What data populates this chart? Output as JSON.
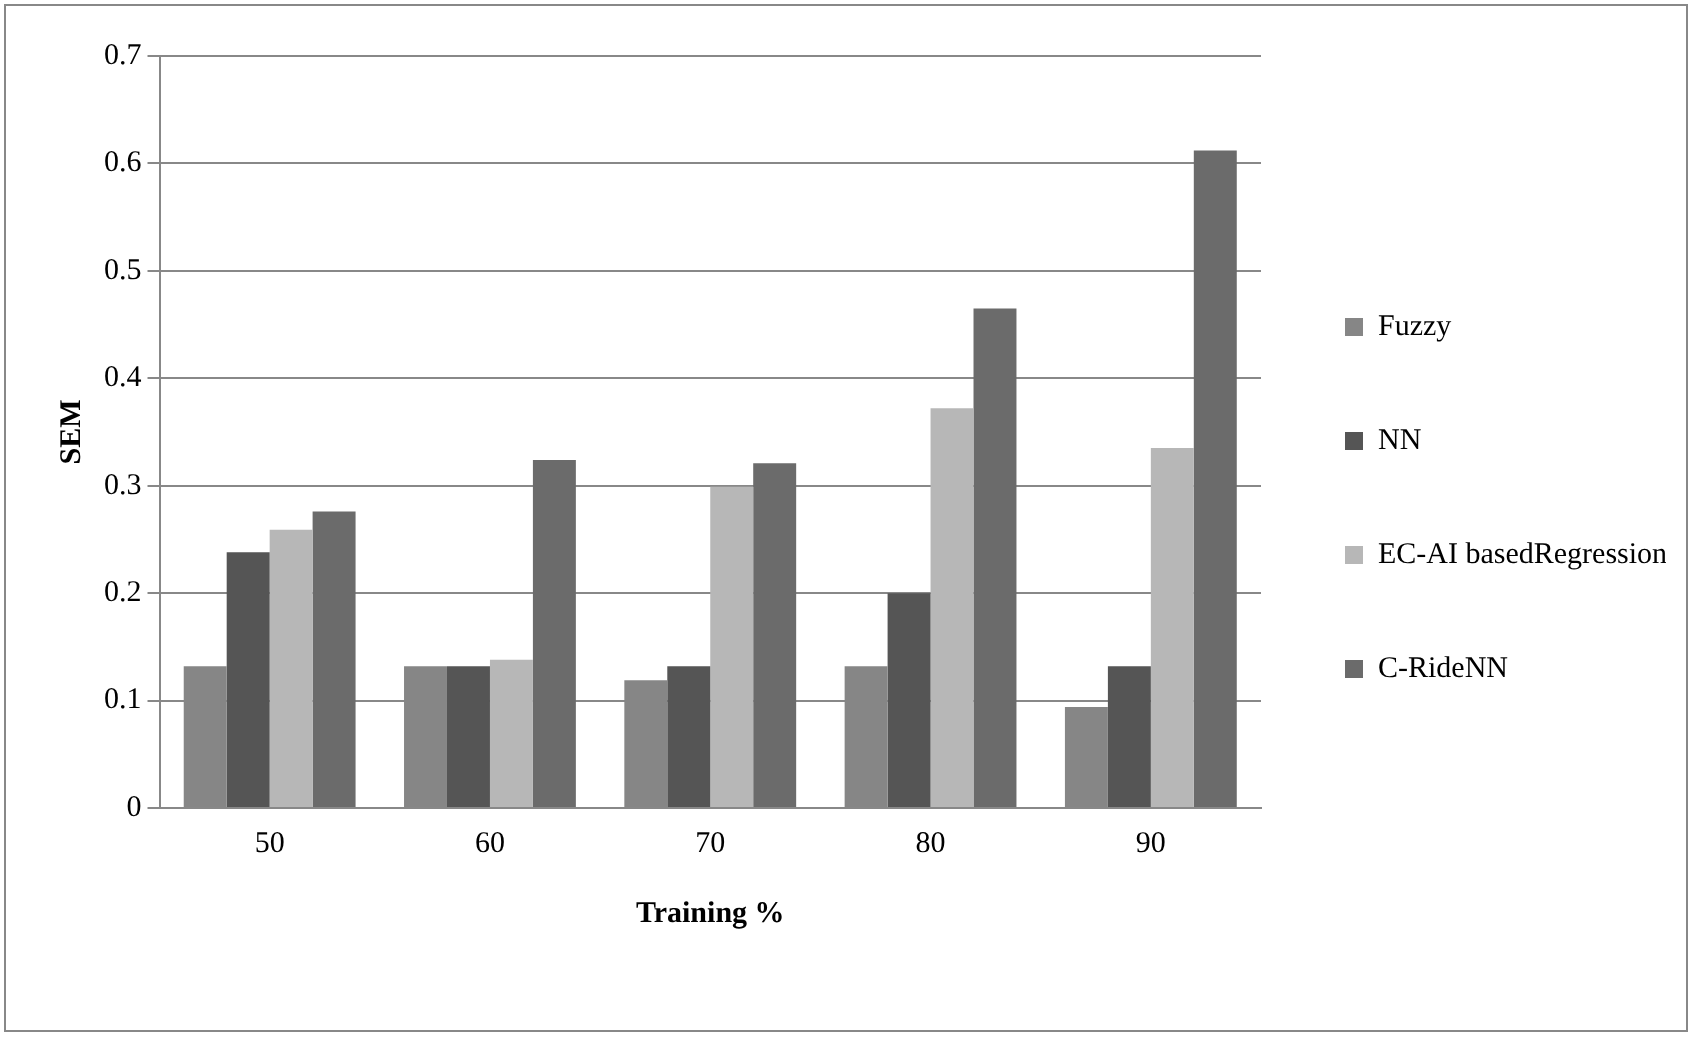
{
  "chart_data": {
    "type": "bar",
    "xlabel": "Training %",
    "ylabel": "SEM",
    "categories": [
      "50",
      "60",
      "70",
      "80",
      "90"
    ],
    "series": [
      {
        "name": "Fuzzy",
        "color": "#868686",
        "values": [
          0.132,
          0.132,
          0.119,
          0.132,
          0.094
        ]
      },
      {
        "name": "NN",
        "color": "#555555",
        "values": [
          0.238,
          0.132,
          0.132,
          0.2,
          0.132
        ]
      },
      {
        "name": "EC-AI basedRegression",
        "color": "#b7b7b7",
        "values": [
          0.259,
          0.138,
          0.299,
          0.372,
          0.335
        ]
      },
      {
        "name": "C-RideNN",
        "color": "#6b6b6b",
        "values": [
          0.276,
          0.324,
          0.321,
          0.465,
          0.612
        ]
      }
    ],
    "ylim": [
      0,
      0.7
    ],
    "yticks": [
      0,
      0.1,
      0.2,
      0.3,
      0.4,
      0.5,
      0.6,
      0.7
    ],
    "grid": "y",
    "legend": "right"
  }
}
